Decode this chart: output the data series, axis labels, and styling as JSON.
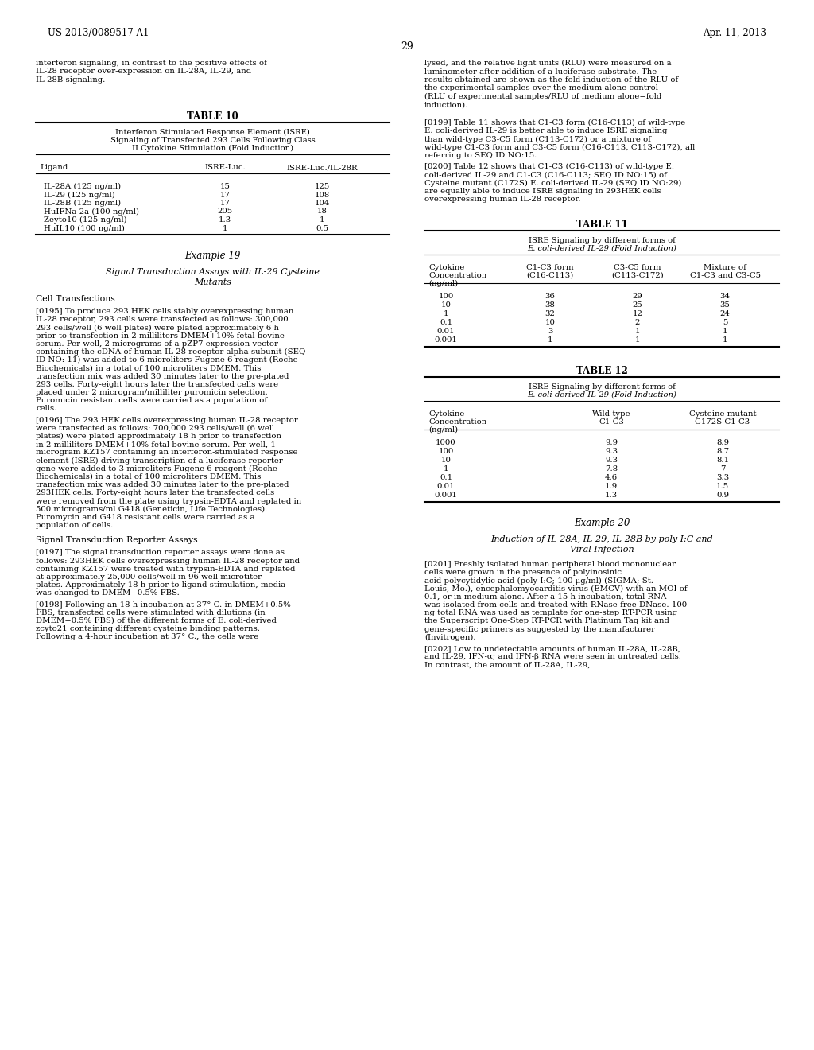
{
  "page_number": "29",
  "header_left": "US 2013/0089517 A1",
  "header_right": "Apr. 11, 2013",
  "table10": {
    "title": "TABLE 10",
    "subtitle": [
      "Interferon Stimulated Response Element (ISRE)",
      "Signaling of Transfected 293 Cells Following Class",
      "II Cytokine Stimulation (Fold Induction)"
    ],
    "headers": [
      "Ligand",
      "ISRE-Luc.",
      "ISRE-Luc./IL-28R"
    ],
    "rows": [
      [
        "IL-28A (125 ng/ml)",
        "15",
        "125"
      ],
      [
        "IL-29 (125 ng/ml)",
        "17",
        "108"
      ],
      [
        "IL-28B (125 ng/ml)",
        "17",
        "104"
      ],
      [
        "HuIFNa-2a (100 ng/ml)",
        "205",
        "18"
      ],
      [
        "Zeyto10 (125 ng/ml)",
        "1.3",
        "1"
      ],
      [
        "HuIL10 (100 ng/ml)",
        "1",
        "0.5"
      ]
    ]
  },
  "table11": {
    "title": "TABLE 11",
    "subtitle": [
      "ISRE Signaling by different forms of",
      "E. coli-derived IL-29 (Fold Induction)"
    ],
    "col1_headers": [
      "Cytokine",
      "Concentration",
      "(ng/ml)"
    ],
    "col2_headers": [
      "C1-C3 form",
      "(C16-C113)"
    ],
    "col3_headers": [
      "C3-C5 form",
      "(C113-C172)"
    ],
    "col4_headers": [
      "Mixture of",
      "C1-C3 and C3-C5"
    ],
    "rows": [
      [
        "100",
        "36",
        "29",
        "34"
      ],
      [
        "10",
        "38",
        "25",
        "35"
      ],
      [
        "1",
        "32",
        "12",
        "24"
      ],
      [
        "0.1",
        "10",
        "2",
        "5"
      ],
      [
        "0.01",
        "3",
        "1",
        "1"
      ],
      [
        "0.001",
        "1",
        "1",
        "1"
      ]
    ]
  },
  "table12": {
    "title": "TABLE 12",
    "subtitle": [
      "ISRE Signaling by different forms of",
      "E. coli-derived IL-29 (Fold Induction)"
    ],
    "col1_headers": [
      "Cytokine",
      "Concentration",
      "(ng/ml)"
    ],
    "col2_headers": [
      "Wild-type",
      "C1-C3"
    ],
    "col3_headers": [
      "Cysteine mutant",
      "C172S C1-C3"
    ],
    "rows": [
      [
        "1000",
        "9.9",
        "8.9"
      ],
      [
        "100",
        "9.3",
        "8.7"
      ],
      [
        "10",
        "9.3",
        "8.1"
      ],
      [
        "1",
        "7.8",
        "7"
      ],
      [
        "0.1",
        "4.6",
        "3.3"
      ],
      [
        "0.01",
        "1.9",
        "1.5"
      ],
      [
        "0.001",
        "1.3",
        "0.9"
      ]
    ]
  },
  "left_top": "interferon signaling, in contrast to the positive effects of\nIL-28 receptor over-expression on IL-28A, IL-29, and\nIL-28B signaling.",
  "example19_title": "Example 19",
  "example19_section": [
    "Signal Transduction Assays with IL-29 Cysteine",
    "Mutants"
  ],
  "cell_transfections": "Cell Transfections",
  "p195": "[0195]  To produce 293 HEK cells stably overexpressing human IL-28 receptor, 293 cells were transfected as follows: 300,000 293 cells/well (6 well plates) were plated approximately 6 h prior to transfection in 2 milliliters DMEM+10% fetal bovine serum. Per well, 2 micrograms of a pZP7 expression vector containing the cDNA of human IL-28 receptor alpha subunit (SEQ ID NO: 11) was added to 6 microliters Fugene 6 reagent (Roche Biochemicals) in a total of 100 microliters DMEM. This transfection mix was added 30 minutes later to the pre-plated 293 cells. Forty-eight hours later the transfected cells were placed under 2 microgram/milliliter puromicin selection. Puromicin resistant cells were carried as a population of cells.",
  "p196": "[0196]  The 293 HEK cells overexpressing human IL-28 receptor were transfected as follows: 700,000 293 cells/well (6 well plates) were plated approximately 18 h prior to transfection in 2 milliliters DMEM+10% fetal bovine serum. Per well, 1 microgram KZ157 containing an interferon-stimulated response element (ISRE) driving transcription of a luciferase reporter gene were added to 3 microliters Fugene 6 reagent (Roche Biochemicals) in a total of 100 microliters DMEM. This transfection mix was added 30 minutes later to the pre-plated 293HEK cells. Forty-eight hours later the transfected cells were removed from the plate using trypsin-EDTA and replated in 500 micrograms/ml G418 (Geneticin, Life Technologies). Puromycin and G418 resistant cells were carried as a population of cells.",
  "signal_reporter": "Signal Transduction Reporter Assays",
  "p197": "[0197]  The signal transduction reporter assays were done as follows: 293HEK cells overexpressing human IL-28 receptor and containing KZ157 were treated with trypsin-EDTA and replated at approximately 25,000 cells/well in 96 well microtiter plates. Approximately 18 h prior to ligand stimulation, media was changed to DMEM+0.5% FBS.",
  "p198": "[0198]  Following an 18 h incubation at 37° C. in DMEM+0.5% FBS, transfected cells were stimulated with dilutions (in DMEM+0.5% FBS) of the different forms of E. coli-derived zcyto21 containing different cysteine binding patterns. Following a 4-hour incubation at 37° C., the cells were",
  "right_top": "lysed, and the relative light units (RLU) were measured on a\nluminometer after addition of a luciferase substrate. The\nresults obtained are shown as the fold induction of the RLU of\nthe experimental samples over the medium alone control\n(RLU of experimental samples/RLU of medium alone=fold\ninduction).",
  "p199": "[0199]  Table 11 shows that C1-C3 form (C16-C113) of wild-type E. coli-derived IL-29 is better able to induce ISRE signaling than wild-type C3-C5 form (C113-C172) or a mixture of wild-type C1-C3 form and C3-C5 form (C16-C113, C113-C172), all referring to SEQ ID NO:15.",
  "p200": "[0200]  Table 12 shows that C1-C3 (C16-C113) of wild-type E. coli-derived IL-29 and C1-C3 (C16-C113; SEQ ID NO:15) of Cysteine mutant (C172S) E. coli-derived IL-29 (SEQ ID NO:29) are equally able to induce ISRE signaling in 293HEK cells overexpressing human IL-28 receptor.",
  "example20_title": "Example 20",
  "example20_section": [
    "Induction of IL-28A, IL-29, IL-28B by poly I:C and",
    "Viral Infection"
  ],
  "p201": "[0201]  Freshly isolated human peripheral blood mononuclear cells were grown in the presence of polyinosinic acid-polycytidylic acid (poly I:C; 100 μg/ml) (SIGMA; St. Louis, Mo.), encephalomyocarditis virus (EMCV) with an MOI of 0.1, or in medium alone. After a 15 h incubation, total RNA was isolated from cells and treated with RNase-free DNase. 100 ng total RNA was used as template for one-step RT-PCR using the Superscript One-Step RT-PCR with Platinum Taq kit and gene-specific primers as suggested by the manufacturer (Invitrogen).",
  "p202": "[0202]  Low to undetectable amounts of human IL-28A, IL-28B, and IL-29, IFN-α; and IFN-β RNA were seen in untreated cells. In contrast, the amount of IL-28A, IL-29,"
}
